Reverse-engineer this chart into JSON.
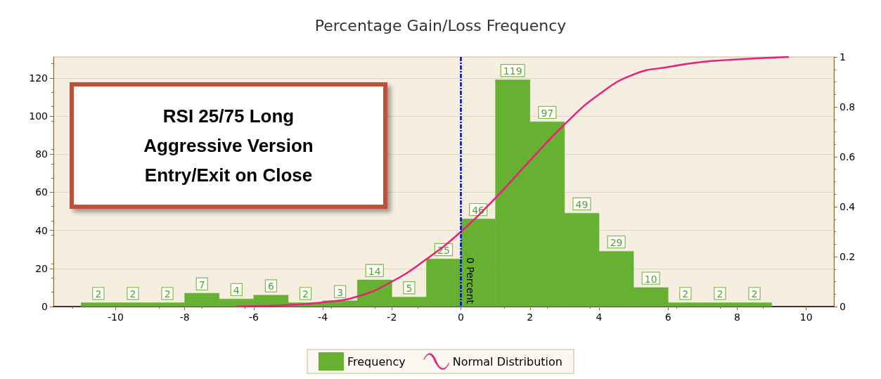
{
  "chart_data": {
    "type": "histogram",
    "title": "Percentage Gain/Loss Frequency",
    "annotations": [
      "RSI 25/75 Long\nAggressive Version\nEntry/Exit on Close"
    ],
    "bins": [
      -11,
      -10,
      -9,
      -8,
      -7,
      -6,
      -5,
      -4,
      -3,
      -2,
      -1,
      0,
      1,
      2,
      3,
      4,
      5,
      6,
      7,
      8,
      9
    ],
    "series": [
      {
        "name": "Frequency",
        "color": "#66b032",
        "values": [
          2,
          2,
          2,
          7,
          4,
          6,
          2,
          3,
          14,
          5,
          25,
          46,
          119,
          97,
          49,
          29,
          10,
          2,
          2,
          2
        ],
        "value_labels": [
          "2",
          "2",
          "2",
          "7",
          "4",
          "6",
          "2",
          "3",
          "14",
          "5",
          "25",
          "46",
          "119",
          "97",
          "49",
          "29",
          "10",
          "2",
          "2",
          "2"
        ]
      },
      {
        "name": "Normal Distribution",
        "type": "line",
        "axis": "y2",
        "color": "#e8207a",
        "x": [
          -6.5,
          -6,
          -5,
          -4,
          -3,
          -2,
          -1,
          0,
          1,
          2,
          3,
          4,
          5,
          6,
          7,
          8,
          9.5
        ],
        "values": [
          0,
          0.002,
          0.006,
          0.017,
          0.04,
          0.1,
          0.19,
          0.3,
          0.435,
          0.585,
          0.73,
          0.85,
          0.93,
          0.96,
          0.98,
          0.99,
          1.0
        ]
      }
    ],
    "xlim": [
      -11.8,
      10.8
    ],
    "xticks": [
      -10,
      -8,
      -6,
      -4,
      -2,
      0,
      2,
      4,
      6,
      8,
      10
    ],
    "ylim": [
      0,
      131
    ],
    "yticks": [
      0,
      20,
      40,
      60,
      80,
      100,
      120
    ],
    "y2lim": [
      0,
      1
    ],
    "y2ticks": [
      0,
      0.2,
      0.4,
      0.6,
      0.8,
      1
    ],
    "ref_lines": [
      {
        "axis": "x",
        "value": 0,
        "label": "0 Percent",
        "color": "#0000cc",
        "line_style": "dashed"
      }
    ],
    "grid": "y",
    "legend": "bottom",
    "marker": "none"
  }
}
